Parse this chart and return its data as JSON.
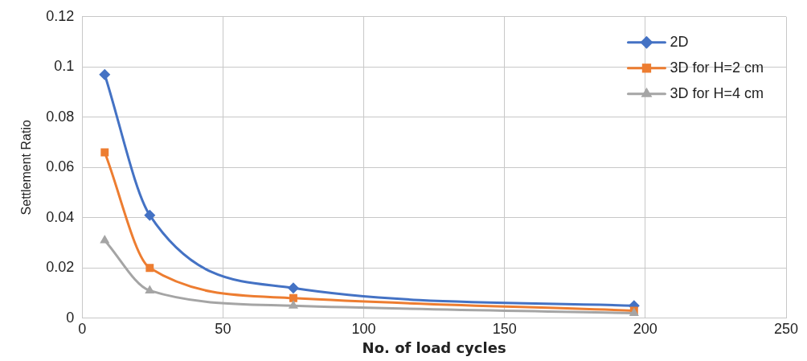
{
  "chart_data": {
    "type": "line",
    "xlabel": "No. of load cycles",
    "ylabel": "Settlement Ratio",
    "xlim": [
      0,
      250
    ],
    "xticks": [
      0,
      50,
      100,
      150,
      200,
      250
    ],
    "ylim": [
      0,
      0.12
    ],
    "yticks": [
      0,
      0.02,
      0.04,
      0.06,
      0.08,
      0.1,
      0.12
    ],
    "x": [
      8,
      24,
      75,
      196
    ],
    "grid": true,
    "legend": "top right",
    "series": [
      {
        "name": "2D",
        "color": "#4472c4",
        "marker": "diamond",
        "values": [
          0.097,
          0.041,
          0.012,
          0.005
        ]
      },
      {
        "name": "3D for H=2 cm",
        "color": "#ed7d31",
        "marker": "square",
        "values": [
          0.066,
          0.02,
          0.008,
          0.003
        ]
      },
      {
        "name": "3D for H=4 cm",
        "color": "#a5a5a5",
        "marker": "triangle",
        "values": [
          0.031,
          0.011,
          0.005,
          0.002
        ]
      }
    ]
  }
}
